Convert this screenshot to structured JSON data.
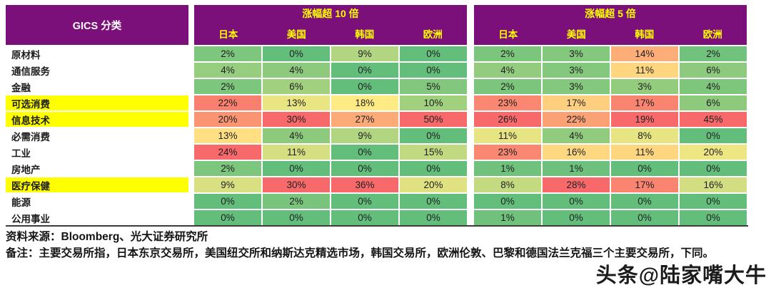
{
  "colors": {
    "header_bg": "#7B107B",
    "header_text": "#FFFF00",
    "gics_text": "#FFFFFF",
    "highlight_bg": "#FFFF00",
    "scale_low": "#63BE7B",
    "scale_mid": "#FFEB84",
    "scale_high": "#F8696B"
  },
  "chart_data": {
    "type": "heatmap",
    "row_header": "GICS 分类",
    "col_groups": [
      "涨幅超 10 倍",
      "涨幅超 5 倍"
    ],
    "col_labels": [
      "日本",
      "美国",
      "韩国",
      "欧洲",
      "日本",
      "美国",
      "韩国",
      "欧洲"
    ],
    "value_unit": "%",
    "color_scale": {
      "low_color": "#63BE7B",
      "mid_color": "#FFEB84",
      "high_color": "#F8696B",
      "scope": "per-column",
      "min": 0
    },
    "rows": [
      {
        "label": "原材料",
        "highlight": false,
        "values": [
          2,
          0,
          9,
          0,
          2,
          3,
          14,
          2
        ]
      },
      {
        "label": "通信服务",
        "highlight": false,
        "values": [
          4,
          4,
          0,
          0,
          4,
          3,
          11,
          6
        ]
      },
      {
        "label": "金融",
        "highlight": false,
        "values": [
          2,
          6,
          0,
          5,
          2,
          3,
          3,
          4
        ]
      },
      {
        "label": "可选消费",
        "highlight": true,
        "values": [
          22,
          13,
          18,
          10,
          23,
          17,
          17,
          6
        ]
      },
      {
        "label": "信息技术",
        "highlight": true,
        "values": [
          20,
          30,
          27,
          50,
          26,
          22,
          19,
          45
        ]
      },
      {
        "label": "必需消费",
        "highlight": false,
        "values": [
          13,
          4,
          9,
          0,
          11,
          4,
          8,
          0
        ]
      },
      {
        "label": "工业",
        "highlight": false,
        "values": [
          24,
          11,
          0,
          15,
          23,
          16,
          11,
          20
        ]
      },
      {
        "label": "房地产",
        "highlight": false,
        "values": [
          2,
          0,
          0,
          0,
          1,
          1,
          0,
          0
        ]
      },
      {
        "label": "医疗保健",
        "highlight": true,
        "values": [
          9,
          30,
          36,
          20,
          8,
          28,
          17,
          16
        ]
      },
      {
        "label": "能源",
        "highlight": false,
        "values": [
          0,
          2,
          0,
          0,
          0,
          0,
          0,
          0
        ]
      },
      {
        "label": "公用事业",
        "highlight": false,
        "values": [
          0,
          0,
          0,
          0,
          1,
          0,
          0,
          0
        ]
      }
    ]
  },
  "footer": {
    "source": "资料来源：Bloomberg、光大证券研究所",
    "note": "备注：主要交易所指，日本东京交易所，美国纽交所和纳斯达克精选市场，韩国交易所，欧洲伦敦、巴黎和德国法兰克福三个主要交易所，下同。"
  },
  "watermark": "头条@陆家嘴大牛"
}
